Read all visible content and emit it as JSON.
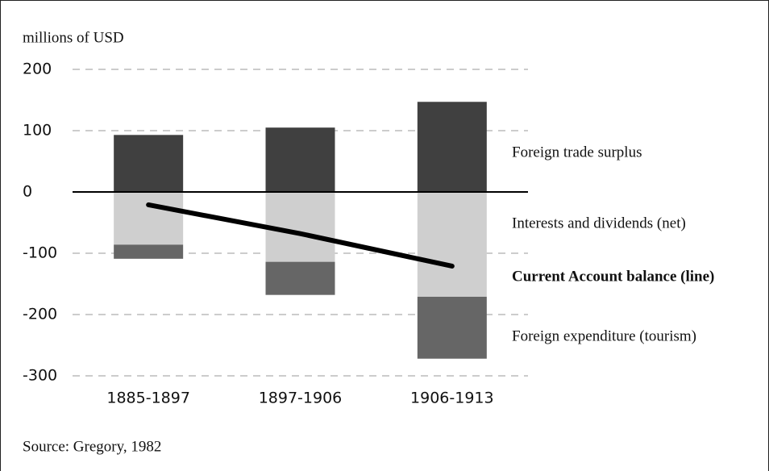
{
  "chart_data": {
    "type": "bar",
    "stacked": true,
    "y_axis_label": "millions of USD",
    "source": "Source: Gregory, 1982",
    "categories": [
      "1885-1897",
      "1897-1906",
      "1906-1913"
    ],
    "series": [
      {
        "name": "Foreign trade surplus",
        "color": "#404040",
        "values": [
          93,
          105,
          147
        ]
      },
      {
        "name": "Interests and dividends (net)",
        "color": "#cfcfcf",
        "values": [
          -86,
          -114,
          -171
        ]
      },
      {
        "name": "Foreign expenditure (tourism)",
        "color": "#666666",
        "values": [
          -23,
          -54,
          -101
        ]
      },
      {
        "name": "Current Account balance (line)",
        "type": "line",
        "color": "#000000",
        "values": [
          -21,
          -68,
          -121
        ]
      }
    ],
    "ylim": [
      -300,
      200
    ],
    "yticks": [
      -300,
      -200,
      -100,
      0,
      100,
      200
    ],
    "grid": true
  }
}
